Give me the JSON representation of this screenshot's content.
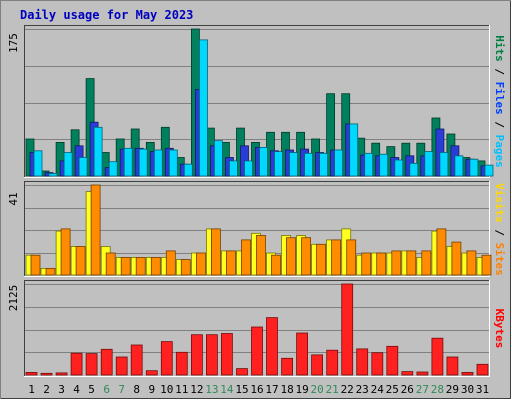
{
  "chart_data": {
    "type": "bar",
    "title": "Daily usage for May 2023",
    "categories": [
      "1",
      "2",
      "3",
      "4",
      "5",
      "6",
      "7",
      "8",
      "9",
      "10",
      "11",
      "12",
      "13",
      "14",
      "15",
      "16",
      "17",
      "18",
      "19",
      "20",
      "21",
      "22",
      "23",
      "24",
      "25",
      "26",
      "27",
      "28",
      "29",
      "30",
      "31"
    ],
    "weekend_days": [
      "6",
      "7",
      "13",
      "14",
      "20",
      "21",
      "27",
      "28"
    ],
    "panels": [
      {
        "name": "pages-files-hits",
        "ymax_label": "175",
        "ymax": 175,
        "grid": true,
        "legend": [
          {
            "text": "Pages",
            "color": "#00c0ff"
          },
          {
            "text": "Files",
            "color": "#0040ff"
          },
          {
            "text": "Hits",
            "color": "#008040"
          }
        ],
        "series": [
          {
            "name": "Hits",
            "color": "#00805c",
            "values": [
              44,
              6,
              40,
              55,
              116,
              28,
              44,
              56,
              40,
              58,
              22,
              175,
              57,
              40,
              57,
              40,
              52,
              52,
              52,
              44,
              98,
              98,
              45,
              39,
              35,
              39,
              39,
              69,
              50,
              22,
              18
            ]
          },
          {
            "name": "Files",
            "color": "#2a3cd6",
            "values": [
              28,
              4,
              18,
              36,
              64,
              10,
              32,
              33,
              29,
              33,
              14,
              103,
              36,
              22,
              36,
              34,
              30,
              31,
              32,
              28,
              31,
              62,
              25,
              24,
              22,
              24,
              24,
              56,
              36,
              20,
              12
            ]
          },
          {
            "name": "Pages",
            "color": "#00d8ff",
            "values": [
              30,
              3,
              28,
              22,
              58,
              17,
              33,
              32,
              31,
              31,
              14,
              162,
              42,
              18,
              18,
              34,
              29,
              28,
              27,
              27,
              31,
              62,
              27,
              26,
              19,
              15,
              29,
              28,
              24,
              20,
              13
            ]
          }
        ]
      },
      {
        "name": "sites-visits",
        "ymax_label": "41",
        "ymax": 41,
        "grid": true,
        "legend": [
          {
            "text": "Sites",
            "color": "#ff8000"
          },
          {
            "text": "Visits",
            "color": "#ffd700"
          }
        ],
        "series": [
          {
            "name": "Visits",
            "color": "#ffff20",
            "values": [
              9,
              3,
              20,
              13,
              38,
              13,
              8,
              8,
              8,
              8,
              7,
              10,
              21,
              11,
              11,
              19,
              10,
              18,
              18,
              14,
              16,
              21,
              9,
              10,
              10,
              11,
              8,
              20,
              13,
              10,
              8
            ]
          },
          {
            "name": "Sites",
            "color": "#ff8c00",
            "values": [
              9,
              3,
              21,
              13,
              41,
              10,
              8,
              8,
              8,
              11,
              7,
              10,
              21,
              11,
              16,
              18,
              9,
              17,
              17,
              14,
              16,
              16,
              10,
              10,
              11,
              11,
              11,
              21,
              15,
              11,
              9
            ]
          }
        ]
      },
      {
        "name": "kbytes",
        "ymax_label": "2125",
        "ymax": 2125,
        "grid": true,
        "legend": [
          {
            "text": "KBytes",
            "color": "#ff0000"
          }
        ],
        "series": [
          {
            "name": "KBytes",
            "color": "#ff2020",
            "values": [
              60,
              40,
              50,
              510,
              500,
              600,
              420,
              700,
              100,
              780,
              530,
              940,
              940,
              970,
              150,
              1120,
              1340,
              390,
              980,
              470,
              580,
              2125,
              610,
              520,
              670,
              80,
              70,
              860,
              420,
              60,
              250
            ]
          }
        ]
      }
    ]
  }
}
